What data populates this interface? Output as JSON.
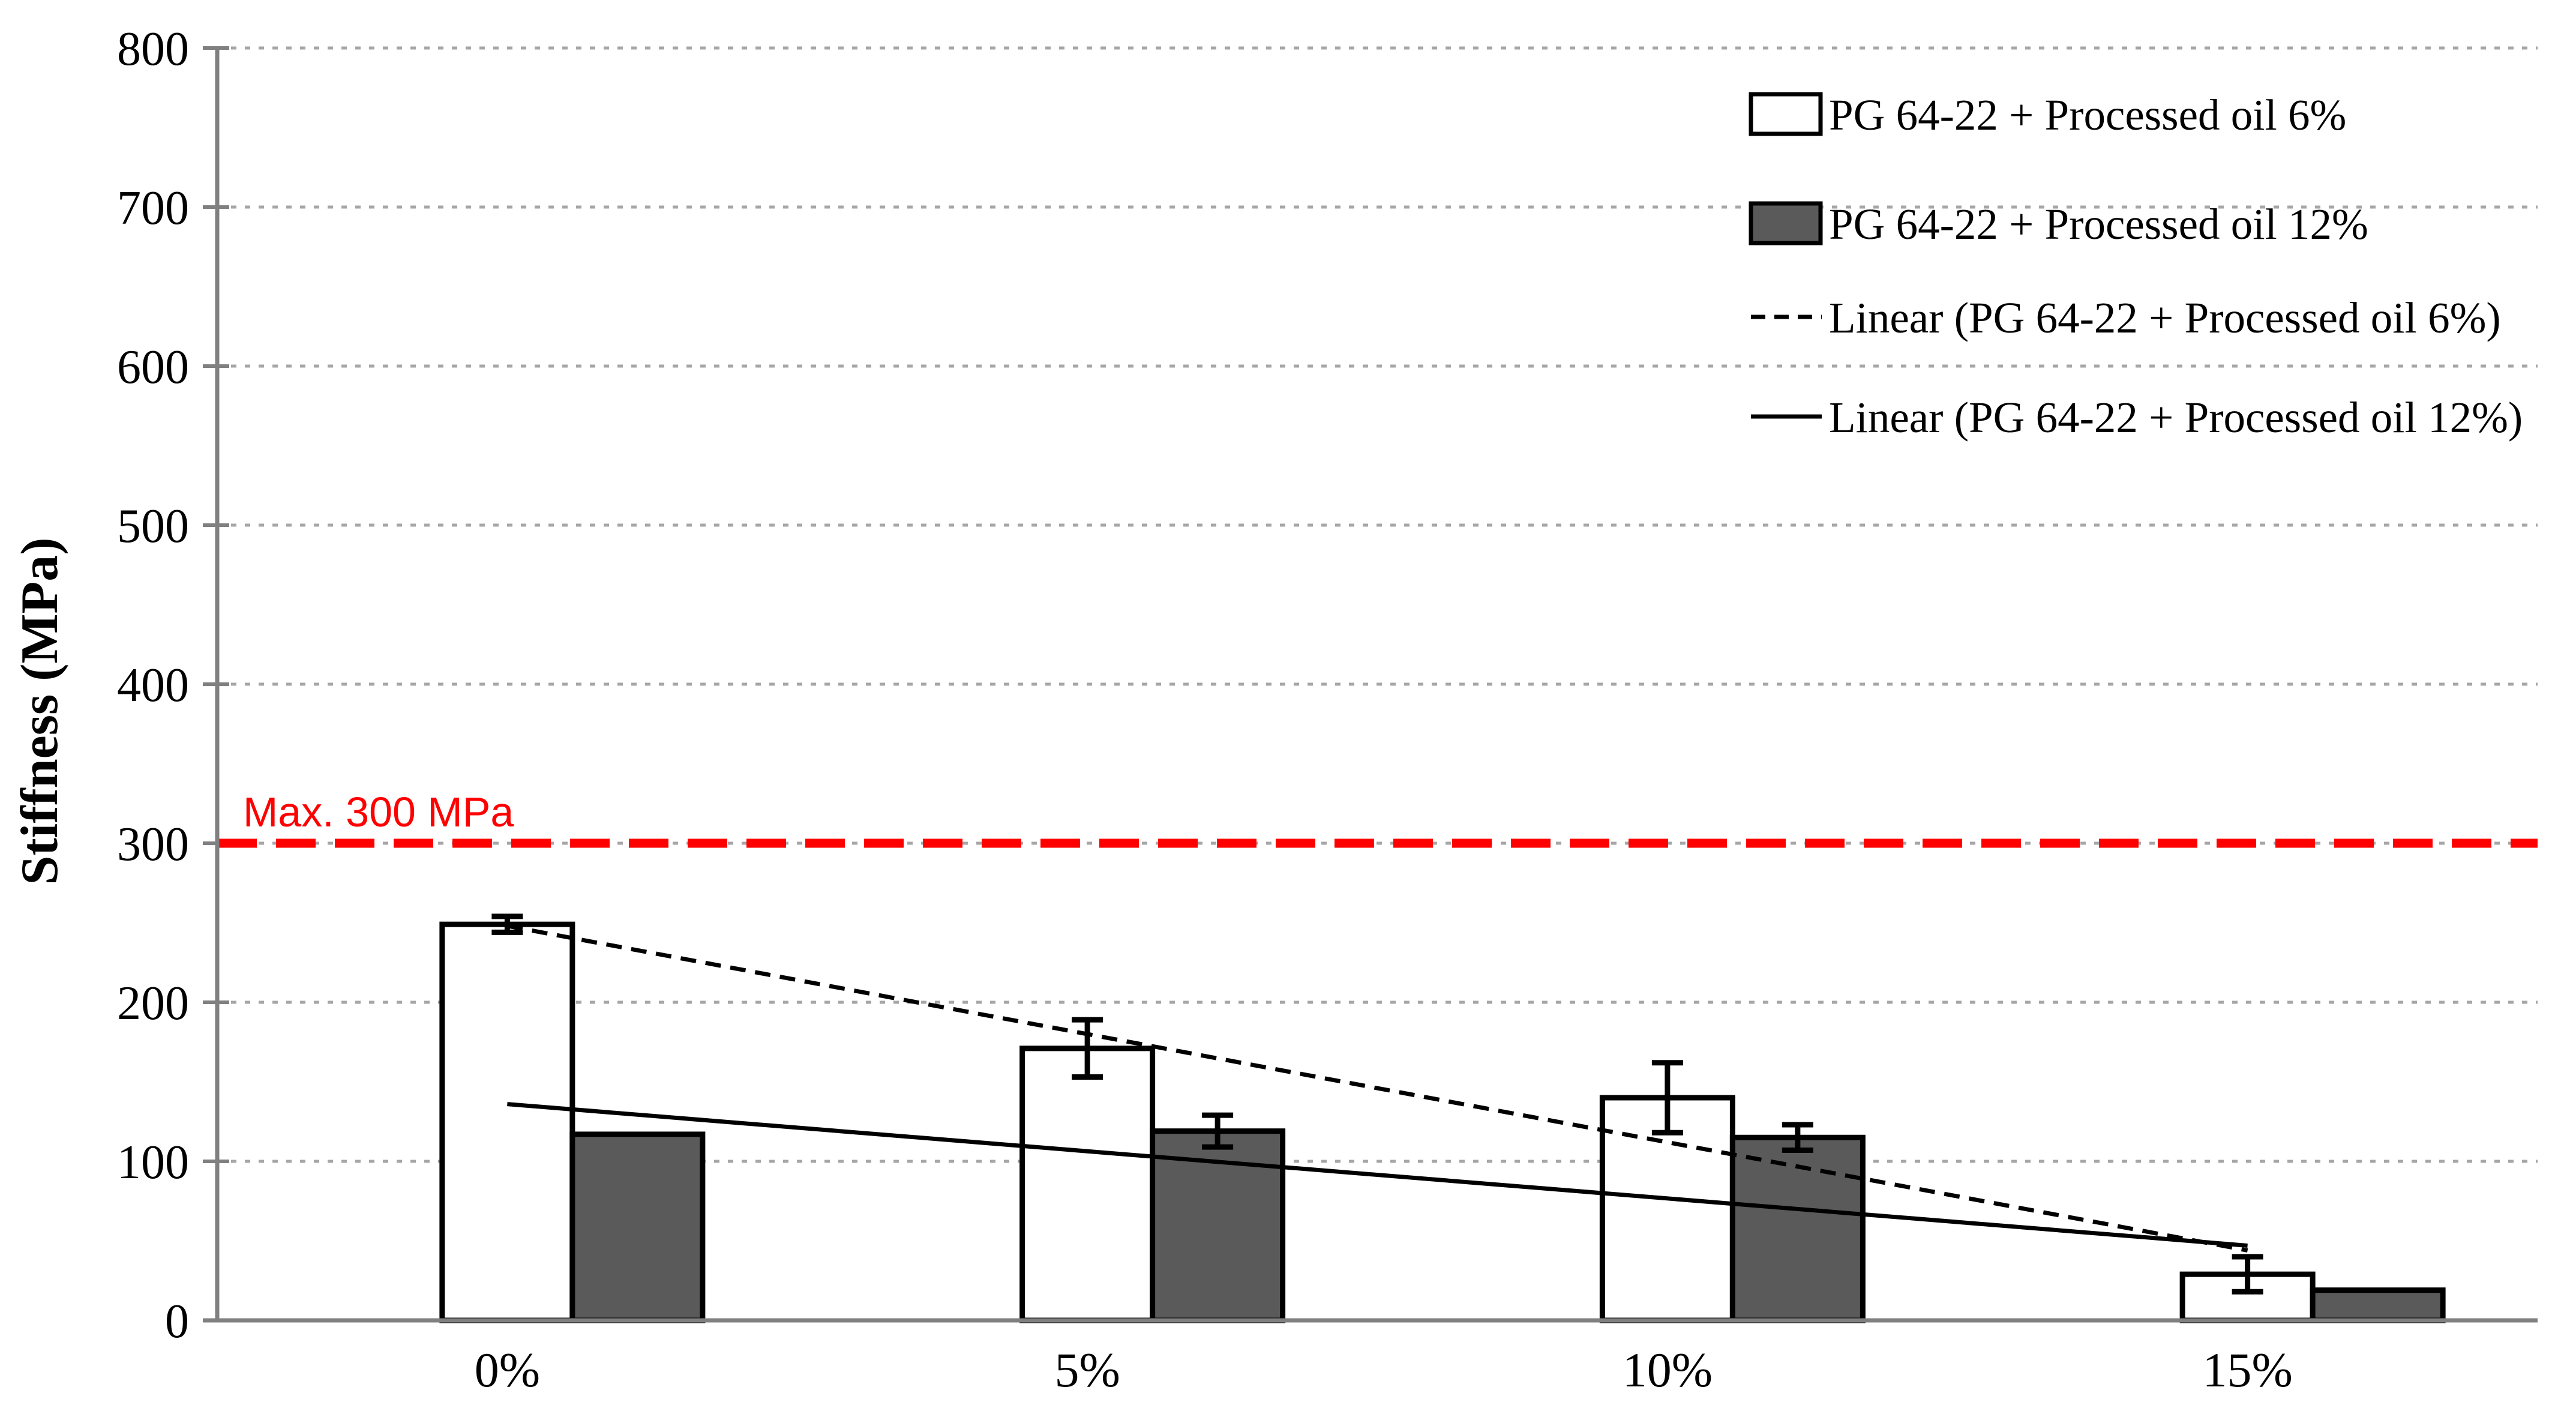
{
  "figure": {
    "background": "#FFFFFF"
  },
  "chart_data": {
    "type": "bar",
    "title": "",
    "xlabel": "",
    "ylabel": "Stiffness (MPa)",
    "ylim": [
      0,
      800
    ],
    "ytick_interval": 100,
    "yticks": [
      "0",
      "100",
      "200",
      "300",
      "400",
      "500",
      "600",
      "700",
      "800"
    ],
    "categories": [
      "0%",
      "5%",
      "10%",
      "15%"
    ],
    "series": [
      {
        "name": "PG 64-22 + Processed oil 6%",
        "fill": "#FFFFFF",
        "border": "#000000",
        "values": [
          249,
          171,
          140,
          29
        ],
        "errors": [
          5,
          18,
          22,
          11
        ]
      },
      {
        "name": "PG 64-22 + Processed oil 12%",
        "fill": "#5A5A5A",
        "border": "#000000",
        "values": [
          117,
          119,
          115,
          19
        ],
        "errors": [
          0,
          10,
          8,
          0
        ]
      }
    ],
    "trendlines": [
      {
        "name": "Linear (PG 64-22 + Processed oil 6%)",
        "style": "dashed",
        "color": "#000000",
        "start_value": 248,
        "end_value": 44
      },
      {
        "name": "Linear (PG 64-22 + Processed oil 12%)",
        "style": "solid",
        "color": "#000000",
        "start_value": 136,
        "end_value": 47
      }
    ],
    "reference_line": {
      "label": "Max. 300 MPa",
      "value": 300,
      "color": "#FF0000"
    },
    "legend_position": "top-right",
    "grid": "horizontal-dotted",
    "axis_color": "#808080",
    "grid_color": "#A6A6A6",
    "error_bar_color": "#000000"
  }
}
